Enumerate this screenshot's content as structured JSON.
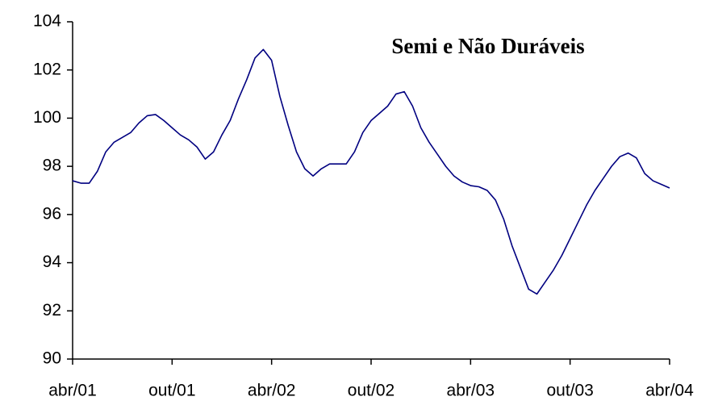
{
  "chart_data": {
    "type": "line",
    "title": "Semi e Não Duráveis",
    "categories": [
      "abr/01",
      null,
      null,
      null,
      null,
      null,
      null,
      null,
      null,
      null,
      null,
      null,
      "out/01",
      null,
      null,
      null,
      null,
      null,
      null,
      null,
      null,
      null,
      null,
      null,
      "abr/02",
      null,
      null,
      null,
      null,
      null,
      null,
      null,
      null,
      null,
      null,
      null,
      "out/02",
      null,
      null,
      null,
      null,
      null,
      null,
      null,
      null,
      null,
      null,
      null,
      "abr/03",
      null,
      null,
      null,
      null,
      null,
      null,
      null,
      null,
      null,
      null,
      null,
      "out/03",
      null,
      null,
      null,
      null,
      null,
      null,
      null,
      null,
      null,
      null,
      null,
      "abr/04"
    ],
    "series": [
      {
        "name": "Semi e Não Duráveis",
        "color": "#000080",
        "values": [
          97.4,
          97.3,
          97.3,
          97.8,
          98.6,
          99.0,
          99.2,
          99.4,
          99.8,
          100.1,
          100.15,
          99.9,
          99.6,
          99.3,
          99.1,
          98.8,
          98.3,
          98.6,
          99.3,
          99.9,
          100.8,
          101.6,
          102.5,
          102.85,
          102.4,
          100.9,
          99.7,
          98.6,
          97.9,
          97.6,
          97.9,
          98.1,
          98.1,
          98.1,
          98.6,
          99.4,
          99.9,
          100.2,
          100.5,
          101.0,
          101.1,
          100.5,
          99.6,
          99.0,
          98.5,
          98.0,
          97.6,
          97.35,
          97.2,
          97.15,
          97.0,
          96.6,
          95.8,
          94.7,
          93.8,
          92.9,
          92.7,
          93.2,
          93.7,
          94.3,
          95.0,
          95.7,
          96.4,
          97.0,
          97.5,
          98.0,
          98.4,
          98.55,
          98.35,
          97.7,
          97.4,
          97.25,
          97.1
        ]
      }
    ],
    "ylim": [
      90,
      104
    ],
    "yticks": [
      90,
      92,
      94,
      96,
      98,
      100,
      102,
      104
    ],
    "grid": false
  }
}
